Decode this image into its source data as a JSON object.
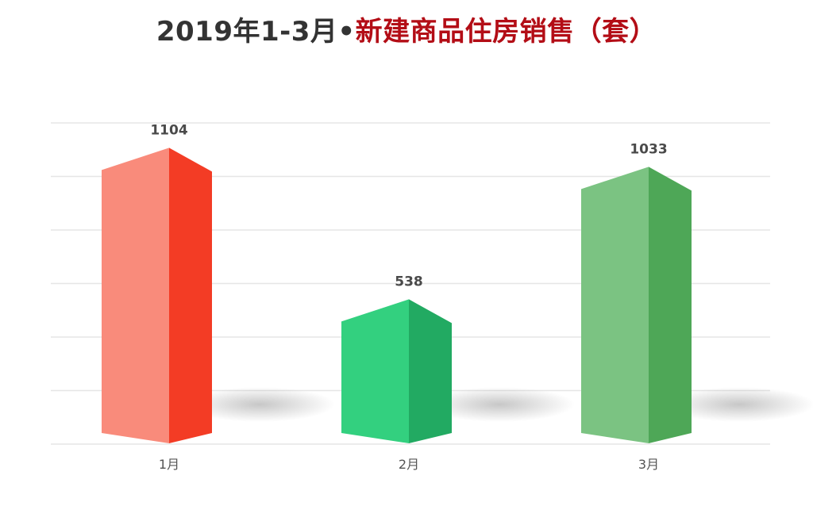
{
  "title": {
    "part1": "2019年1-3月•",
    "part2": "新建商品住房销售（套）"
  },
  "colors": {
    "title_dark": "#333333",
    "title_red": "#b30d16",
    "bar1_front": "#f98b7b",
    "bar1_side": "#f33c25",
    "bar2_front": "#33d07f",
    "bar2_side": "#22aa62",
    "bar3_front": "#7bc382",
    "bar3_side": "#4ea757"
  },
  "chart_data": {
    "type": "bar",
    "title": "2019年1-3月•新建商品住房销售（套）",
    "categories": [
      "1月",
      "2月",
      "3月"
    ],
    "values": [
      1104,
      538,
      1033
    ],
    "xlabel": "",
    "ylabel": "",
    "grid": true,
    "legend": "none"
  }
}
